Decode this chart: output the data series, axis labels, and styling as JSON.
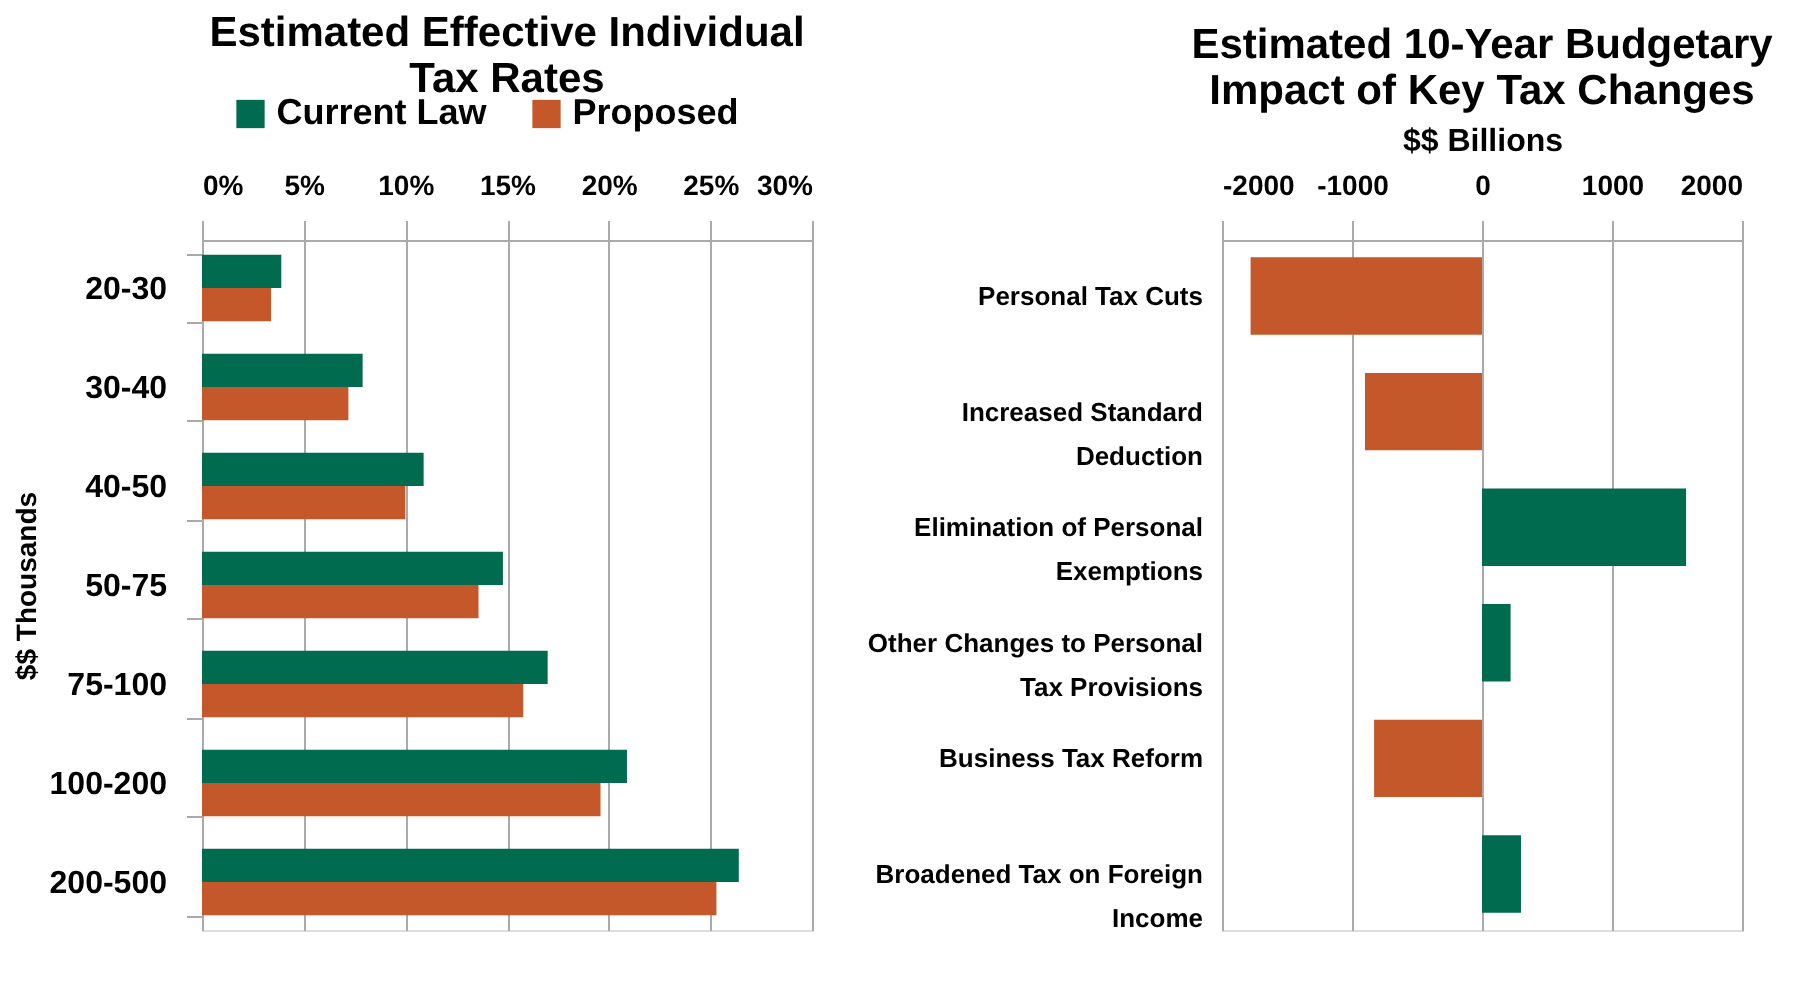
{
  "chart_data": [
    {
      "type": "bar",
      "orientation": "horizontal",
      "title": "Estimated Effective Individual Tax Rates",
      "ylabel": "$$ Thousands",
      "categories": [
        "20-30",
        "30-40",
        "40-50",
        "50-75",
        "75-100",
        "100-200",
        "200-500"
      ],
      "series": [
        {
          "name": "Current Law",
          "color": "#006b4f",
          "values": [
            3.9,
            7.9,
            10.9,
            14.8,
            17.0,
            20.9,
            26.4
          ]
        },
        {
          "name": "Proposed",
          "color": "#c5582b",
          "values": [
            3.4,
            7.2,
            10.0,
            13.6,
            15.8,
            19.6,
            25.3
          ]
        }
      ],
      "xlim": [
        0,
        30
      ],
      "xticks": [
        {
          "value": 0,
          "label": "0%"
        },
        {
          "value": 5,
          "label": "5%"
        },
        {
          "value": 10,
          "label": "10%"
        },
        {
          "value": 15,
          "label": "15%"
        },
        {
          "value": 20,
          "label": "20%"
        },
        {
          "value": 25,
          "label": "25%"
        },
        {
          "value": 30,
          "label": "30%"
        }
      ],
      "grid": "x",
      "legend": "top"
    },
    {
      "type": "bar",
      "orientation": "horizontal",
      "title": "Estimated 10-Year Budgetary Impact of Key Tax Changes",
      "xlabel": "$$ Billions",
      "categories": [
        "Personal Tax Cuts",
        "Increased Standard Deduction",
        "Elimination of Personal Exemptions",
        "Other Changes to Personal Tax Provisions",
        "Business Tax Reform",
        "Broadened Tax on Foreign Income"
      ],
      "values": [
        -1780,
        -900,
        1570,
        220,
        -830,
        300
      ],
      "colors": [
        "#c5582b",
        "#c5582b",
        "#006b4f",
        "#006b4f",
        "#c5582b",
        "#006b4f"
      ],
      "xlim": [
        -2000,
        2000
      ],
      "xticks": [
        -2000,
        -1000,
        0,
        1000,
        2000
      ],
      "grid": "x"
    }
  ]
}
